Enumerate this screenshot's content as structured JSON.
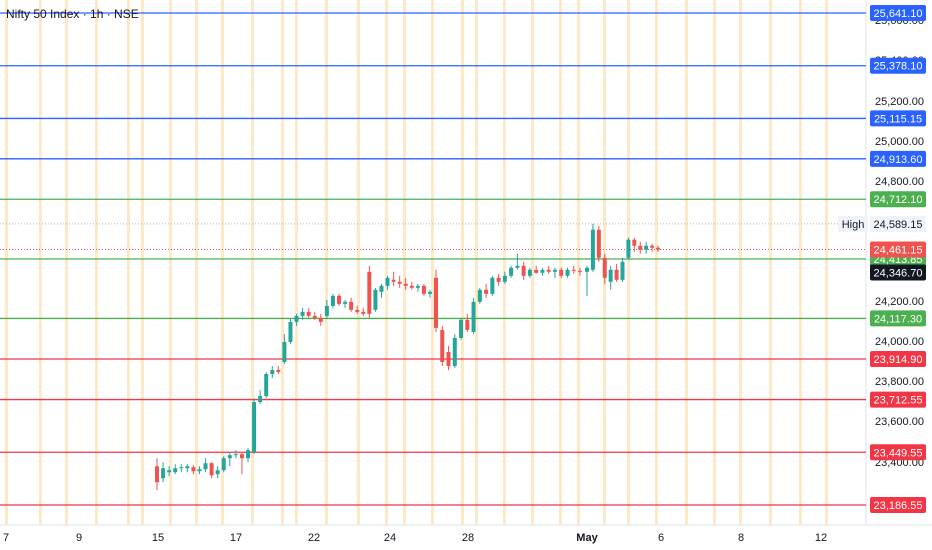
{
  "title": "Nifty 50 Index · 1h · NSE",
  "colors": {
    "background": "#ffffff",
    "up": "#26a69a",
    "down": "#ef5350",
    "blue_line": "#2962ff",
    "green_line": "#4caf50",
    "red_line": "#f23645",
    "session_band": "#fde9c8",
    "axis_text": "#131722",
    "high_tag": "#f0f3fa"
  },
  "price_axis": {
    "ticks": [
      "25,600.00",
      "25,400.00",
      "25,200.00",
      "25,000.00",
      "24,800.00",
      "24,600.00",
      "24,400.00",
      "24,200.00",
      "24,000.00",
      "23,800.00",
      "23,600.00",
      "23,400.00"
    ]
  },
  "time_axis": {
    "labels": [
      "7",
      "9",
      "15",
      "17",
      "22",
      "24",
      "28",
      "May",
      "6",
      "8",
      "12"
    ]
  },
  "levels": [
    {
      "label": "25,641.10",
      "price": 25641.1,
      "kind": "blue"
    },
    {
      "label": "25,378.10",
      "price": 25378.1,
      "kind": "blue"
    },
    {
      "label": "25,115.15",
      "price": 25115.15,
      "kind": "blue"
    },
    {
      "label": "24,913.60",
      "price": 24913.6,
      "kind": "blue"
    },
    {
      "label": "24,712.10",
      "price": 24712.1,
      "kind": "green"
    },
    {
      "label": "24,413.85",
      "price": 24413.85,
      "kind": "green"
    },
    {
      "label": "24,117.30",
      "price": 24117.3,
      "kind": "green"
    },
    {
      "label": "23,914.90",
      "price": 23914.9,
      "kind": "red"
    },
    {
      "label": "23,712.55",
      "price": 23712.55,
      "kind": "red"
    },
    {
      "label": "23,449.55",
      "price": 23449.55,
      "kind": "red"
    },
    {
      "label": "23,186.55",
      "price": 23186.55,
      "kind": "red"
    }
  ],
  "markers": {
    "high": {
      "caption": "High",
      "label": "24,589.15",
      "price": 24589.15
    },
    "last": {
      "label": "24,461.15",
      "price": 24461.15
    },
    "prev": {
      "label": "24,346.70",
      "price": 24346.7
    }
  },
  "chart_data": {
    "type": "candlestick",
    "title": "Nifty 50 Index · 1h · NSE",
    "x_tick_labels": [
      "7",
      "9",
      "15",
      "17",
      "22",
      "24",
      "28",
      "May",
      "6",
      "8",
      "12"
    ],
    "y_tick_labels": [
      "25,600.00",
      "25,400.00",
      "25,200.00",
      "25,000.00",
      "24,800.00",
      "24,600.00",
      "24,400.00",
      "24,200.00",
      "24,000.00",
      "23,800.00",
      "23,600.00",
      "23,400.00"
    ],
    "ylim": [
      23120,
      25680
    ],
    "candles": [
      {
        "o": 23380,
        "h": 23420,
        "l": 23260,
        "c": 23300
      },
      {
        "o": 23320,
        "h": 23400,
        "l": 23300,
        "c": 23370
      },
      {
        "o": 23350,
        "h": 23380,
        "l": 23330,
        "c": 23360
      },
      {
        "o": 23350,
        "h": 23390,
        "l": 23340,
        "c": 23370
      },
      {
        "o": 23370,
        "h": 23390,
        "l": 23350,
        "c": 23375
      },
      {
        "o": 23370,
        "h": 23390,
        "l": 23350,
        "c": 23380
      },
      {
        "o": 23375,
        "h": 23385,
        "l": 23340,
        "c": 23355
      },
      {
        "o": 23355,
        "h": 23380,
        "l": 23340,
        "c": 23365
      },
      {
        "o": 23365,
        "h": 23420,
        "l": 23350,
        "c": 23395
      },
      {
        "o": 23395,
        "h": 23400,
        "l": 23320,
        "c": 23335
      },
      {
        "o": 23340,
        "h": 23380,
        "l": 23320,
        "c": 23360
      },
      {
        "o": 23360,
        "h": 23430,
        "l": 23350,
        "c": 23420
      },
      {
        "o": 23420,
        "h": 23450,
        "l": 23380,
        "c": 23435
      },
      {
        "o": 23435,
        "h": 23460,
        "l": 23420,
        "c": 23440
      },
      {
        "o": 23440,
        "h": 23450,
        "l": 23340,
        "c": 23420
      },
      {
        "o": 23420,
        "h": 23470,
        "l": 23400,
        "c": 23460
      },
      {
        "o": 23450,
        "h": 23720,
        "l": 23440,
        "c": 23700
      },
      {
        "o": 23700,
        "h": 23760,
        "l": 23690,
        "c": 23730
      },
      {
        "o": 23730,
        "h": 23850,
        "l": 23720,
        "c": 23840
      },
      {
        "o": 23840,
        "h": 23880,
        "l": 23820,
        "c": 23860
      },
      {
        "o": 23860,
        "h": 23880,
        "l": 23840,
        "c": 23850
      },
      {
        "o": 23900,
        "h": 24040,
        "l": 23890,
        "c": 24000
      },
      {
        "o": 24000,
        "h": 24120,
        "l": 23990,
        "c": 24100
      },
      {
        "o": 24100,
        "h": 24140,
        "l": 24080,
        "c": 24130
      },
      {
        "o": 24130,
        "h": 24170,
        "l": 24110,
        "c": 24150
      },
      {
        "o": 24150,
        "h": 24170,
        "l": 24120,
        "c": 24130
      },
      {
        "o": 24130,
        "h": 24150,
        "l": 24110,
        "c": 24120
      },
      {
        "o": 24120,
        "h": 24140,
        "l": 24080,
        "c": 24100
      },
      {
        "o": 24130,
        "h": 24210,
        "l": 24120,
        "c": 24180
      },
      {
        "o": 24180,
        "h": 24240,
        "l": 24170,
        "c": 24230
      },
      {
        "o": 24230,
        "h": 24240,
        "l": 24180,
        "c": 24190
      },
      {
        "o": 24190,
        "h": 24210,
        "l": 24170,
        "c": 24200
      },
      {
        "o": 24200,
        "h": 24220,
        "l": 24150,
        "c": 24160
      },
      {
        "o": 24160,
        "h": 24180,
        "l": 24140,
        "c": 24150
      },
      {
        "o": 24150,
        "h": 24170,
        "l": 24130,
        "c": 24140
      },
      {
        "o": 24350,
        "h": 24380,
        "l": 24120,
        "c": 24140
      },
      {
        "o": 24160,
        "h": 24270,
        "l": 24150,
        "c": 24260
      },
      {
        "o": 24250,
        "h": 24290,
        "l": 24220,
        "c": 24280
      },
      {
        "o": 24280,
        "h": 24330,
        "l": 24260,
        "c": 24320
      },
      {
        "o": 24310,
        "h": 24350,
        "l": 24280,
        "c": 24300
      },
      {
        "o": 24300,
        "h": 24330,
        "l": 24270,
        "c": 24290
      },
      {
        "o": 24290,
        "h": 24320,
        "l": 24260,
        "c": 24280
      },
      {
        "o": 24280,
        "h": 24300,
        "l": 24260,
        "c": 24270
      },
      {
        "o": 24270,
        "h": 24290,
        "l": 24250,
        "c": 24280
      },
      {
        "o": 24280,
        "h": 24290,
        "l": 24230,
        "c": 24240
      },
      {
        "o": 24240,
        "h": 24260,
        "l": 24220,
        "c": 24250
      },
      {
        "o": 24320,
        "h": 24360,
        "l": 24050,
        "c": 24070
      },
      {
        "o": 24060,
        "h": 24080,
        "l": 23880,
        "c": 23900
      },
      {
        "o": 23950,
        "h": 23980,
        "l": 23860,
        "c": 23880
      },
      {
        "o": 23880,
        "h": 24040,
        "l": 23870,
        "c": 24020
      },
      {
        "o": 24020,
        "h": 24120,
        "l": 24010,
        "c": 24110
      },
      {
        "o": 24110,
        "h": 24140,
        "l": 24050,
        "c": 24060
      },
      {
        "o": 24050,
        "h": 24220,
        "l": 24040,
        "c": 24200
      },
      {
        "o": 24200,
        "h": 24270,
        "l": 24190,
        "c": 24260
      },
      {
        "o": 24260,
        "h": 24290,
        "l": 24220,
        "c": 24240
      },
      {
        "o": 24240,
        "h": 24330,
        "l": 24230,
        "c": 24320
      },
      {
        "o": 24320,
        "h": 24340,
        "l": 24280,
        "c": 24300
      },
      {
        "o": 24300,
        "h": 24350,
        "l": 24290,
        "c": 24330
      },
      {
        "o": 24330,
        "h": 24380,
        "l": 24320,
        "c": 24370
      },
      {
        "o": 24370,
        "h": 24440,
        "l": 24360,
        "c": 24380
      },
      {
        "o": 24380,
        "h": 24400,
        "l": 24310,
        "c": 24330
      },
      {
        "o": 24330,
        "h": 24370,
        "l": 24320,
        "c": 24360
      },
      {
        "o": 24360,
        "h": 24380,
        "l": 24340,
        "c": 24345
      },
      {
        "o": 24345,
        "h": 24370,
        "l": 24330,
        "c": 24360
      },
      {
        "o": 24360,
        "h": 24380,
        "l": 24340,
        "c": 24350
      },
      {
        "o": 24350,
        "h": 24370,
        "l": 24320,
        "c": 24360
      },
      {
        "o": 24360,
        "h": 24370,
        "l": 24320,
        "c": 24330
      },
      {
        "o": 24330,
        "h": 24370,
        "l": 24320,
        "c": 24360
      },
      {
        "o": 24360,
        "h": 24380,
        "l": 24340,
        "c": 24355
      },
      {
        "o": 24355,
        "h": 24370,
        "l": 24330,
        "c": 24350
      },
      {
        "o": 24350,
        "h": 24380,
        "l": 24230,
        "c": 24370
      },
      {
        "o": 24360,
        "h": 24590,
        "l": 24350,
        "c": 24560
      },
      {
        "o": 24560,
        "h": 24580,
        "l": 24400,
        "c": 24420
      },
      {
        "o": 24420,
        "h": 24440,
        "l": 24290,
        "c": 24320
      },
      {
        "o": 24300,
        "h": 24380,
        "l": 24260,
        "c": 24360
      },
      {
        "o": 24360,
        "h": 24390,
        "l": 24300,
        "c": 24310
      },
      {
        "o": 24310,
        "h": 24420,
        "l": 24300,
        "c": 24400
      },
      {
        "o": 24420,
        "h": 24520,
        "l": 24410,
        "c": 24510
      },
      {
        "o": 24510,
        "h": 24520,
        "l": 24450,
        "c": 24480
      },
      {
        "o": 24480,
        "h": 24500,
        "l": 24440,
        "c": 24460
      },
      {
        "o": 24460,
        "h": 24500,
        "l": 24440,
        "c": 24480
      },
      {
        "o": 24480,
        "h": 24490,
        "l": 24450,
        "c": 24470
      },
      {
        "o": 24470,
        "h": 24480,
        "l": 24450,
        "c": 24461
      }
    ]
  }
}
